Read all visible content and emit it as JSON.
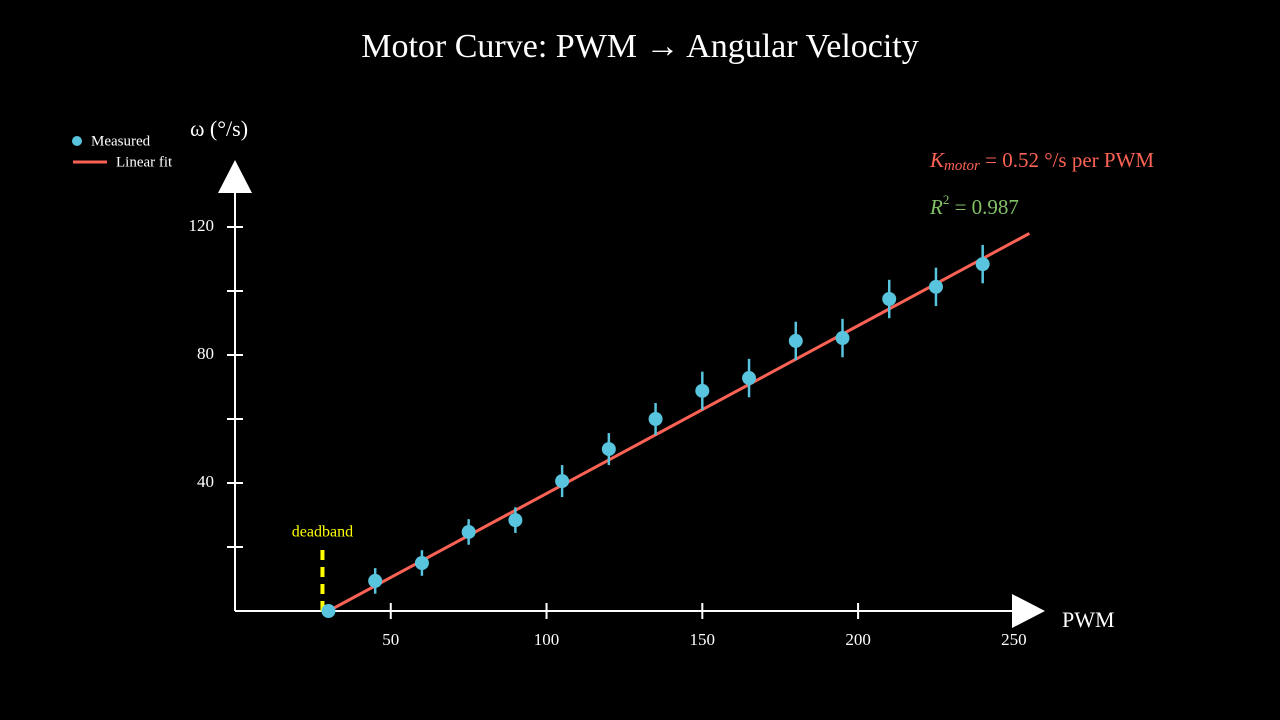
{
  "chart_data": {
    "type": "scatter",
    "title": "Motor Curve: PWM → Angular Velocity",
    "x_label": "PWM",
    "y_label": "ω (°/s)",
    "xlim": [
      0,
      260
    ],
    "ylim": [
      0,
      140
    ],
    "xticks": [
      50,
      100,
      150,
      200,
      250
    ],
    "yticks": [
      40,
      80,
      120
    ],
    "y_minor_ticks": [
      20,
      60,
      100
    ],
    "legend": "top-left",
    "series": [
      {
        "name": "Measured",
        "color": "#58c4dd",
        "x": [
          30,
          45,
          60,
          75,
          90,
          105,
          120,
          135,
          150,
          165,
          180,
          195,
          210,
          225,
          240
        ],
        "values": [
          0,
          9.4,
          15,
          24.7,
          28.4,
          40.6,
          50.6,
          60,
          68.8,
          72.8,
          84.4,
          85.3,
          97.5,
          101.3,
          108.4
        ],
        "errors": [
          2,
          4,
          4,
          4,
          4,
          5,
          5,
          5,
          6,
          6,
          6,
          6,
          6,
          6,
          6
        ]
      },
      {
        "name": "Linear fit",
        "color": "#fc6255",
        "x": [
          30,
          255
        ],
        "values": [
          0,
          118
        ]
      }
    ],
    "deadband": {
      "label": "deadband",
      "color": "#ffff00",
      "x": 30,
      "height": 20
    },
    "fit_label": {
      "symbol": "K",
      "subscript": "motor",
      "text": " = 0.52 °/s per PWM",
      "color": "#fc6255"
    },
    "r2_label": {
      "symbol": "R",
      "superscript": "2",
      "text": " = 0.987",
      "color": "#83c167"
    }
  }
}
